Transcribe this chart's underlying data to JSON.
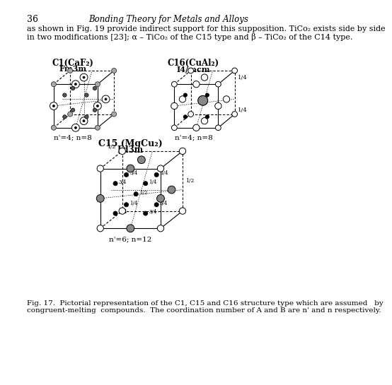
{
  "page_number": "36",
  "header_right": "Bonding Theory for Metals and Alloys",
  "para_line1": "as shown in Fig. 19 provide indirect support for this supposition. TiCo₂ exists side by side",
  "para_line2": "in two modifications [23]; α – TiCo₂ of the C15 type and β – TiCo₂ of the C14 type.",
  "fig_caption_line1": "Fig. 17.  Pictorial representation of the C1, C15 and C16 structure type which are assumed   by",
  "fig_caption_line2": "congruent-melting  compounds.  The coordination number of A and B are n' and n respectively.",
  "c1_label": "C1(CaF₂)",
  "c1_sublabel": "Fm3m",
  "c16_label": "C16(CuAl₂)",
  "c16_sublabel": "I4/mcm",
  "c15_label": "C15 (MgCu₂)",
  "c15_sublabel": "Fd3m",
  "c1_coord": "n'=4; n=8",
  "c16_coord": "n'=4; n=8",
  "c15_coord": "n'=6; n=12",
  "bg_color": "#ffffff",
  "text_color": "#000000"
}
